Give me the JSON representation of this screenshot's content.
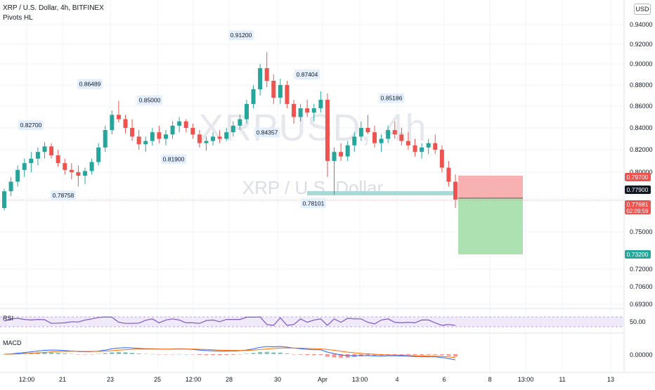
{
  "header": {
    "symbol_line": "XRP / U.S. Dollar, 4h, BITFINEX",
    "indicator_line": "Pivots HL",
    "currency": "USD"
  },
  "watermark": {
    "ticker": "XRPUSD, 4h",
    "name": "XRP / U.S. Dollar"
  },
  "colors": {
    "up": "#26a69a",
    "down": "#ef5350",
    "stop_zone": "#f7a9a9",
    "target_zone": "#a5deaa",
    "support_line": "#a8d9d6",
    "rsi": "#7e57c2",
    "macd_line": "#2962ff",
    "signal_line": "#ff6d00",
    "grid": "#f0f3fa"
  },
  "price_axis": {
    "ticks": [
      "0.94000",
      "0.92000",
      "0.90000",
      "0.88000",
      "0.86000",
      "0.84000",
      "0.82000",
      "0.80000",
      "0.75000",
      "0.72000",
      "0.70600",
      "0.69300"
    ],
    "badges": [
      {
        "name": "stop-price-badge",
        "text": "0.79700",
        "color": "#ef5350"
      },
      {
        "name": "entry-price-badge",
        "text": "0.77900",
        "color": "#131722"
      },
      {
        "name": "last-price-badge",
        "text": "0.77681",
        "text2": "02:09:59",
        "color": "#ef5350"
      },
      {
        "name": "target-price-badge",
        "text": "0.73200",
        "color": "#26a69a"
      }
    ]
  },
  "time_axis": {
    "labels": [
      "12:00",
      "21",
      "23",
      "25",
      "12:00",
      "28",
      "30",
      "Apr",
      "13:00",
      "4",
      "6",
      "8",
      "13:00",
      "11",
      "13"
    ]
  },
  "pivots": [
    {
      "label": "0.82700",
      "kind": "high"
    },
    {
      "label": "0.78758",
      "kind": "low"
    },
    {
      "label": "0.86489",
      "kind": "high"
    },
    {
      "label": "0.85000",
      "kind": "high"
    },
    {
      "label": "0.81900",
      "kind": "low"
    },
    {
      "label": "0.91200",
      "kind": "high"
    },
    {
      "label": "0.84357",
      "kind": "low"
    },
    {
      "label": "0.87404",
      "kind": "high"
    },
    {
      "label": "0.78101",
      "kind": "low"
    },
    {
      "label": "0.85186",
      "kind": "high"
    }
  ],
  "rsi": {
    "label": "RSI",
    "level": "50.00"
  },
  "macd": {
    "label": "MACD",
    "level": "0.00000"
  },
  "chart_data": {
    "type": "candlestick",
    "title": "XRP / U.S. Dollar, 4h, BITFINEX",
    "ylim": [
      0.685,
      0.945
    ],
    "candles_approx": [
      [
        0.77,
        0.786,
        0.768,
        0.784
      ],
      [
        0.784,
        0.796,
        0.78,
        0.792
      ],
      [
        0.792,
        0.806,
        0.788,
        0.802
      ],
      [
        0.802,
        0.812,
        0.796,
        0.808
      ],
      [
        0.808,
        0.818,
        0.8,
        0.812
      ],
      [
        0.812,
        0.822,
        0.806,
        0.818
      ],
      [
        0.818,
        0.827,
        0.812,
        0.823
      ],
      [
        0.823,
        0.826,
        0.812,
        0.815
      ],
      [
        0.815,
        0.82,
        0.805,
        0.808
      ],
      [
        0.808,
        0.812,
        0.798,
        0.802
      ],
      [
        0.802,
        0.808,
        0.794,
        0.8
      ],
      [
        0.8,
        0.806,
        0.788,
        0.797
      ],
      [
        0.797,
        0.804,
        0.79,
        0.801
      ],
      [
        0.801,
        0.812,
        0.798,
        0.809
      ],
      [
        0.809,
        0.826,
        0.806,
        0.822
      ],
      [
        0.822,
        0.842,
        0.818,
        0.838
      ],
      [
        0.838,
        0.856,
        0.834,
        0.852
      ],
      [
        0.852,
        0.865,
        0.845,
        0.848
      ],
      [
        0.848,
        0.852,
        0.835,
        0.84
      ],
      [
        0.84,
        0.848,
        0.828,
        0.832
      ],
      [
        0.832,
        0.838,
        0.82,
        0.825
      ],
      [
        0.825,
        0.832,
        0.818,
        0.828
      ],
      [
        0.828,
        0.84,
        0.824,
        0.836
      ],
      [
        0.836,
        0.842,
        0.826,
        0.83
      ],
      [
        0.83,
        0.838,
        0.824,
        0.834
      ],
      [
        0.834,
        0.846,
        0.83,
        0.842
      ],
      [
        0.842,
        0.85,
        0.836,
        0.846
      ],
      [
        0.846,
        0.848,
        0.836,
        0.84
      ],
      [
        0.84,
        0.844,
        0.83,
        0.834
      ],
      [
        0.834,
        0.838,
        0.822,
        0.826
      ],
      [
        0.826,
        0.832,
        0.819,
        0.828
      ],
      [
        0.828,
        0.836,
        0.824,
        0.832
      ],
      [
        0.832,
        0.838,
        0.826,
        0.83
      ],
      [
        0.83,
        0.84,
        0.828,
        0.836
      ],
      [
        0.836,
        0.846,
        0.832,
        0.842
      ],
      [
        0.842,
        0.852,
        0.838,
        0.848
      ],
      [
        0.848,
        0.866,
        0.844,
        0.862
      ],
      [
        0.862,
        0.88,
        0.858,
        0.876
      ],
      [
        0.876,
        0.9,
        0.87,
        0.896
      ],
      [
        0.896,
        0.912,
        0.878,
        0.884
      ],
      [
        0.884,
        0.89,
        0.862,
        0.868
      ],
      [
        0.868,
        0.886,
        0.862,
        0.88
      ],
      [
        0.88,
        0.884,
        0.858,
        0.862
      ],
      [
        0.862,
        0.866,
        0.844,
        0.85
      ],
      [
        0.85,
        0.862,
        0.846,
        0.858
      ],
      [
        0.858,
        0.866,
        0.85,
        0.854
      ],
      [
        0.854,
        0.862,
        0.846,
        0.858
      ],
      [
        0.858,
        0.874,
        0.854,
        0.866
      ],
      [
        0.866,
        0.872,
        0.796,
        0.81
      ],
      [
        0.81,
        0.822,
        0.781,
        0.818
      ],
      [
        0.818,
        0.826,
        0.81,
        0.814
      ],
      [
        0.814,
        0.828,
        0.81,
        0.824
      ],
      [
        0.824,
        0.836,
        0.818,
        0.832
      ],
      [
        0.832,
        0.846,
        0.828,
        0.84
      ],
      [
        0.84,
        0.852,
        0.834,
        0.836
      ],
      [
        0.836,
        0.842,
        0.822,
        0.826
      ],
      [
        0.826,
        0.834,
        0.818,
        0.83
      ],
      [
        0.83,
        0.842,
        0.826,
        0.838
      ],
      [
        0.838,
        0.846,
        0.83,
        0.834
      ],
      [
        0.834,
        0.84,
        0.824,
        0.828
      ],
      [
        0.828,
        0.836,
        0.82,
        0.824
      ],
      [
        0.824,
        0.83,
        0.814,
        0.818
      ],
      [
        0.818,
        0.826,
        0.812,
        0.822
      ],
      [
        0.822,
        0.83,
        0.816,
        0.826
      ],
      [
        0.826,
        0.834,
        0.816,
        0.82
      ],
      [
        0.82,
        0.824,
        0.8,
        0.804
      ],
      [
        0.804,
        0.81,
        0.788,
        0.792
      ],
      [
        0.792,
        0.798,
        0.77,
        0.777
      ]
    ],
    "trade_setup": {
      "entry": 0.779,
      "stop": 0.797,
      "target": 0.732,
      "last": 0.77681
    },
    "support_level": 0.78101
  }
}
